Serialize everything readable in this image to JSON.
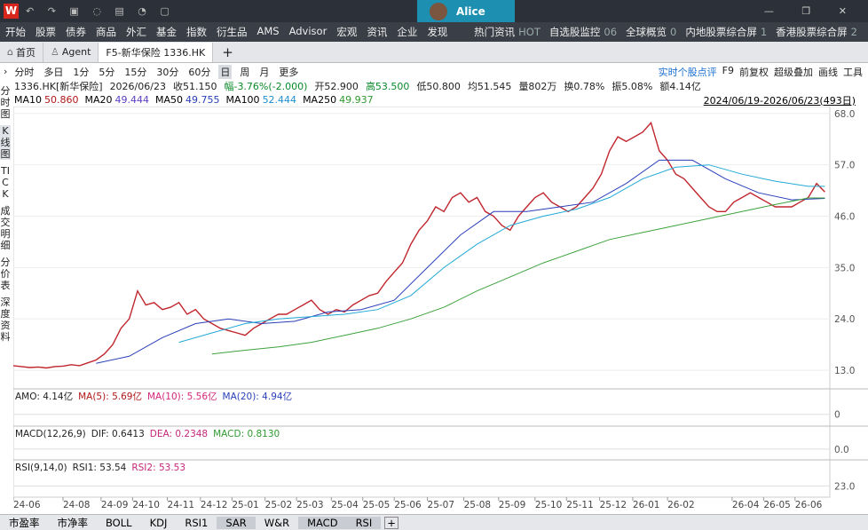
{
  "title_bar": {
    "logo": "W",
    "user": "Alice"
  },
  "menu": [
    "开始",
    "股票",
    "债券",
    "商品",
    "外汇",
    "基金",
    "指数",
    "衍生品",
    "AMS",
    "Advisor",
    "宏观",
    "资讯",
    "企业",
    "发现"
  ],
  "menu_right": [
    [
      "热门资讯",
      "HOT"
    ],
    [
      "自选股监控",
      "06"
    ],
    [
      "全球概览",
      "0"
    ],
    [
      "内地股票综合屏",
      "1"
    ],
    [
      "香港股票综合屏",
      "2"
    ]
  ],
  "tabs": [
    "首页",
    "Agent",
    "F5-新华保险 1336.HK"
  ],
  "periods": [
    "分时",
    "多日",
    "1分",
    "5分",
    "15分",
    "30分",
    "60分",
    "日",
    "周",
    "月",
    "更多"
  ],
  "tools": [
    "实时个股点评",
    "F9",
    "前复权",
    "超级叠加",
    "画线",
    "工具"
  ],
  "quote": [
    "1336.HK[新华保险]",
    "2026/06/23",
    "收51.150",
    "幅-3.76%(-2.000)",
    "开52.900",
    "高53.500",
    "低50.800",
    "均51.545",
    "量802万",
    "换0.78%",
    "振5.08%",
    "额4.14亿"
  ],
  "sidebar": [
    "分时图",
    "K线图",
    "TICK",
    "成交明细",
    "分价表",
    "深度资料"
  ],
  "ma_legend": [
    [
      "MA10",
      "50.860"
    ],
    [
      "MA20",
      "49.444"
    ],
    [
      "MA50",
      "49.755"
    ],
    [
      "MA100",
      "52.444"
    ],
    [
      "MA250",
      "49.937"
    ]
  ],
  "range": "2024/06/19-2026/06/23(493日)",
  "panels": {
    "volume": [
      "AMO: 4.14亿",
      "MA(5): 5.69亿",
      "MA(10): 5.56亿",
      "MA(20): 4.94亿"
    ],
    "volume_tick": "0",
    "macd": [
      "MACD(12,26,9)",
      "DIF: 0.6413",
      "DEA: 0.2348",
      "MACD: 0.8130"
    ],
    "macd_tick": "0.0",
    "rsi": [
      "RSI(9,14,0)",
      "RSI1: 53.54",
      "RSI2: 53.53"
    ],
    "rsi_tick": "23.0"
  },
  "bottom_tabs": [
    "市盈率",
    "市净率",
    "BOLL",
    "KDJ",
    "RSI1",
    "SAR",
    "W&R",
    "MACD",
    "RSI"
  ],
  "chart_data": {
    "type": "line",
    "xlim": [
      0,
      493
    ],
    "ylim": [
      9.6,
      69.1
    ],
    "grid": true,
    "yticks": [
      {
        "value": 13,
        "label": "13.0"
      },
      {
        "value": 24,
        "label": "24.0"
      },
      {
        "value": 35,
        "label": "35.0"
      },
      {
        "value": 46,
        "label": "46.0"
      },
      {
        "value": 57,
        "label": "57.0"
      },
      {
        "value": 68,
        "label": "68.0"
      }
    ],
    "xticks": [
      {
        "value": 0,
        "label": "24-06"
      },
      {
        "value": 30,
        "label": "24-08"
      },
      {
        "value": 53,
        "label": "24-09"
      },
      {
        "value": 72,
        "label": "24-10"
      },
      {
        "value": 93,
        "label": "24-11"
      },
      {
        "value": 113,
        "label": "24-12"
      },
      {
        "value": 132,
        "label": "25-01"
      },
      {
        "value": 152,
        "label": "25-02"
      },
      {
        "value": 171,
        "label": "25-03"
      },
      {
        "value": 192,
        "label": "25-04"
      },
      {
        "value": 211,
        "label": "25-05"
      },
      {
        "value": 230,
        "label": "25-06"
      },
      {
        "value": 250,
        "label": "25-07"
      },
      {
        "value": 272,
        "label": "25-08"
      },
      {
        "value": 293,
        "label": "25-09"
      },
      {
        "value": 315,
        "label": "25-10"
      },
      {
        "value": 334,
        "label": "25-11"
      },
      {
        "value": 354,
        "label": "25-12"
      },
      {
        "value": 374,
        "label": "26-01"
      },
      {
        "value": 395,
        "label": "26-02"
      },
      {
        "value": 434,
        "label": "26-04"
      },
      {
        "value": 453,
        "label": "26-05"
      },
      {
        "value": 472,
        "label": "26-06"
      }
    ],
    "series": [
      {
        "color": "#c0262d",
        "x": [
          0,
          5,
          10,
          15,
          20,
          25,
          30,
          35,
          40,
          45,
          50,
          55,
          60,
          65,
          70,
          75,
          80,
          85,
          90,
          95,
          100,
          105,
          110,
          115,
          120,
          125,
          130,
          135,
          140,
          145,
          150,
          155,
          160,
          165,
          170,
          175,
          180,
          185,
          190,
          195,
          200,
          205,
          210,
          215,
          220,
          225,
          230,
          235,
          240,
          245,
          250,
          255,
          260,
          265,
          270,
          275,
          280,
          285,
          290,
          295,
          300,
          305,
          310,
          315,
          320,
          325,
          330,
          335,
          340,
          345,
          350,
          355,
          360,
          365,
          370,
          375,
          380,
          385,
          390,
          395,
          400,
          405,
          410,
          415,
          420,
          425,
          430,
          435,
          440,
          445,
          450,
          455,
          460,
          465,
          470,
          475,
          480,
          485,
          490
        ],
        "values": [
          14.0,
          13.8,
          13.6,
          13.7,
          13.5,
          13.8,
          13.9,
          14.2,
          14.0,
          14.6,
          15.2,
          16.5,
          18.5,
          22,
          24,
          30,
          27,
          27.5,
          26,
          26.5,
          27.5,
          25,
          26,
          24,
          23,
          22,
          21.5,
          21,
          20.5,
          22,
          23,
          24,
          25,
          25,
          26,
          27,
          28,
          26,
          25,
          26,
          25.5,
          27,
          28,
          29,
          29.5,
          32,
          34,
          36,
          40,
          43,
          45,
          48,
          47,
          50,
          51,
          49,
          50,
          47,
          46,
          44,
          43,
          46,
          48,
          50,
          51,
          49,
          48,
          47,
          48,
          50,
          52,
          55,
          60,
          63,
          62,
          63,
          64,
          66,
          60,
          58,
          55,
          54,
          52,
          50,
          48,
          47,
          47,
          49,
          50,
          51,
          50,
          49,
          48,
          48,
          48,
          49,
          50,
          53,
          51.2
        ]
      },
      {
        "name": "MA50",
        "color": "#2a3fb8",
        "x": [
          50,
          70,
          90,
          110,
          130,
          150,
          170,
          190,
          210,
          230,
          250,
          270,
          290,
          310,
          330,
          350,
          370,
          390,
          410,
          430,
          450,
          470,
          490
        ],
        "values": [
          14.5,
          16,
          20,
          23,
          24,
          23,
          23.5,
          25.5,
          26,
          28,
          35,
          42,
          47,
          47,
          48,
          49,
          53,
          58,
          58,
          54,
          51,
          49.5,
          49.8
        ]
      },
      {
        "name": "MA100",
        "color": "#21a9d6",
        "x": [
          100,
          120,
          140,
          160,
          180,
          200,
          220,
          240,
          260,
          280,
          300,
          320,
          340,
          360,
          380,
          400,
          420,
          440,
          460,
          480,
          490
        ],
        "values": [
          19,
          21,
          23,
          24,
          24.5,
          25,
          26,
          29,
          35,
          40,
          44,
          46,
          47.5,
          50,
          54,
          56.5,
          57,
          55,
          53.5,
          52.4,
          52.4
        ]
      },
      {
        "name": "MA250",
        "color": "#3da23d",
        "x": [
          120,
          140,
          160,
          180,
          200,
          220,
          240,
          260,
          280,
          300,
          320,
          340,
          360,
          380,
          400,
          420,
          440,
          460,
          480,
          490
        ],
        "values": [
          16.5,
          17.3,
          18,
          19,
          20.5,
          22,
          24,
          26.5,
          30,
          33,
          36,
          38.5,
          41,
          42.5,
          44,
          45.5,
          47,
          48.5,
          49.9,
          49.9
        ]
      }
    ]
  }
}
